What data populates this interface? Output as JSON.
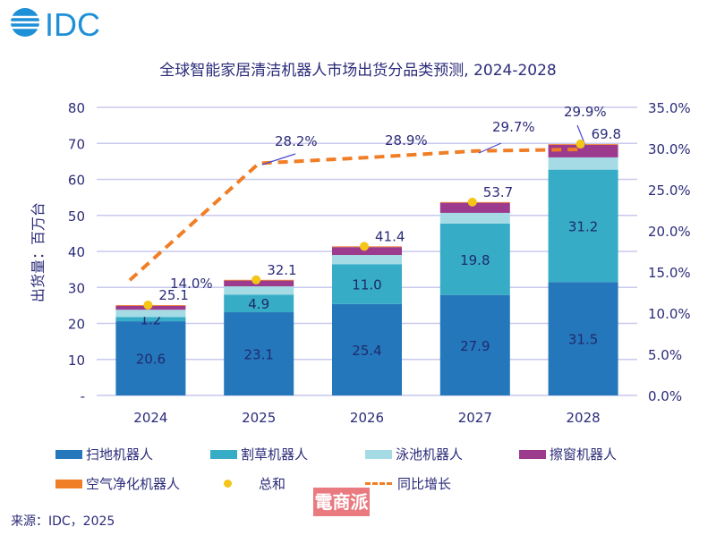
{
  "logo": "IDC",
  "chart_data": {
    "type": "bar",
    "title": "全球智能家居清洁机器人市场出货分品类预测, 2024-2028",
    "ylabel": "出货量：百万台",
    "ylim": [
      0,
      80
    ],
    "y_ticks": [
      "-",
      "10",
      "20",
      "30",
      "40",
      "50",
      "60",
      "70",
      "80"
    ],
    "y2lim": [
      0,
      35
    ],
    "y2_ticks": [
      "0.0%",
      "5.0%",
      "10.0%",
      "15.0%",
      "20.0%",
      "25.0%",
      "30.0%",
      "35.0%"
    ],
    "categories": [
      "2024",
      "2025",
      "2026",
      "2027",
      "2028"
    ],
    "grid": true,
    "legend_position": "bottom",
    "series": [
      {
        "name": "扫地机器人",
        "color": "#2577bb",
        "values": [
          20.6,
          23.1,
          25.4,
          27.9,
          31.5
        ],
        "labels": [
          "20.6",
          "23.1",
          "25.4",
          "27.9",
          "31.5"
        ]
      },
      {
        "name": "割草机器人",
        "color": "#36acc7",
        "values": [
          1.2,
          4.9,
          11.0,
          19.8,
          31.2
        ],
        "labels": [
          "1.2",
          "4.9",
          "11.0",
          "19.8",
          "31.2"
        ]
      },
      {
        "name": "泳池机器人",
        "color": "#a4dbe5",
        "values": [
          2.0,
          2.3,
          2.6,
          3.0,
          3.4
        ]
      },
      {
        "name": "擦窗机器人",
        "color": "#9c3b8e",
        "values": [
          1.1,
          1.6,
          2.2,
          2.8,
          3.5
        ]
      },
      {
        "name": "空气净化机器人",
        "color": "#f07e26",
        "values": [
          0.2,
          0.2,
          0.2,
          0.2,
          0.2
        ]
      }
    ],
    "total": {
      "name": "总和",
      "color": "#f5c518",
      "values": [
        25.1,
        32.1,
        41.4,
        53.7,
        69.8
      ],
      "labels": [
        "25.1",
        "32.1",
        "41.4",
        "53.7",
        "69.8"
      ]
    },
    "yoy": {
      "name": "同比增长",
      "color": "#f07e26",
      "values": [
        14.0,
        28.2,
        28.9,
        29.7,
        29.9
      ],
      "labels": [
        "14.0%",
        "28.2%",
        "28.9%",
        "29.7%",
        "29.9%"
      ]
    }
  },
  "source": "来源：IDC，2025",
  "watermark": "電商派"
}
